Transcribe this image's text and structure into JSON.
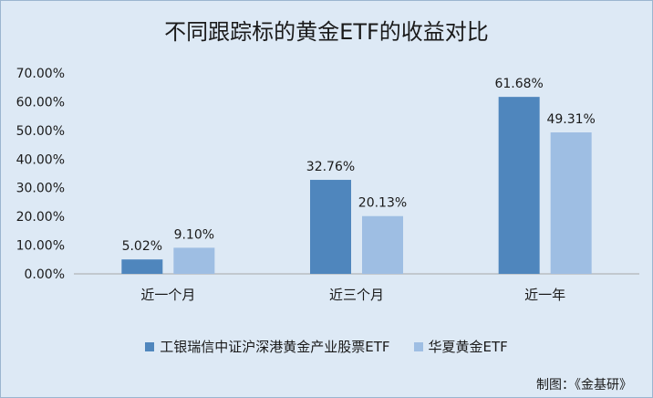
{
  "colors": {
    "series1": "#4f86bd",
    "series2": "#9ebee3",
    "background": "#dde9f5"
  },
  "credit": "制图：《金基研》",
  "chart_data": {
    "type": "bar",
    "title": "不同跟踪标的黄金ETF的收益对比",
    "categories": [
      "近一个月",
      "近三个月",
      "近一年"
    ],
    "series": [
      {
        "name": "工银瑞信中证沪深港黄金产业股票ETF",
        "values": [
          5.02,
          32.76,
          61.68
        ],
        "labels": [
          "5.02%",
          "32.76%",
          "61.68%"
        ]
      },
      {
        "name": "华夏黄金ETF",
        "values": [
          9.1,
          20.13,
          49.31
        ],
        "labels": [
          "9.10%",
          "20.13%",
          "49.31%"
        ]
      }
    ],
    "yticks": [
      "0.00%",
      "10.00%",
      "20.00%",
      "30.00%",
      "40.00%",
      "50.00%",
      "60.00%",
      "70.00%"
    ],
    "ylim": [
      0,
      70
    ],
    "legend": "bottom",
    "grid": false
  }
}
